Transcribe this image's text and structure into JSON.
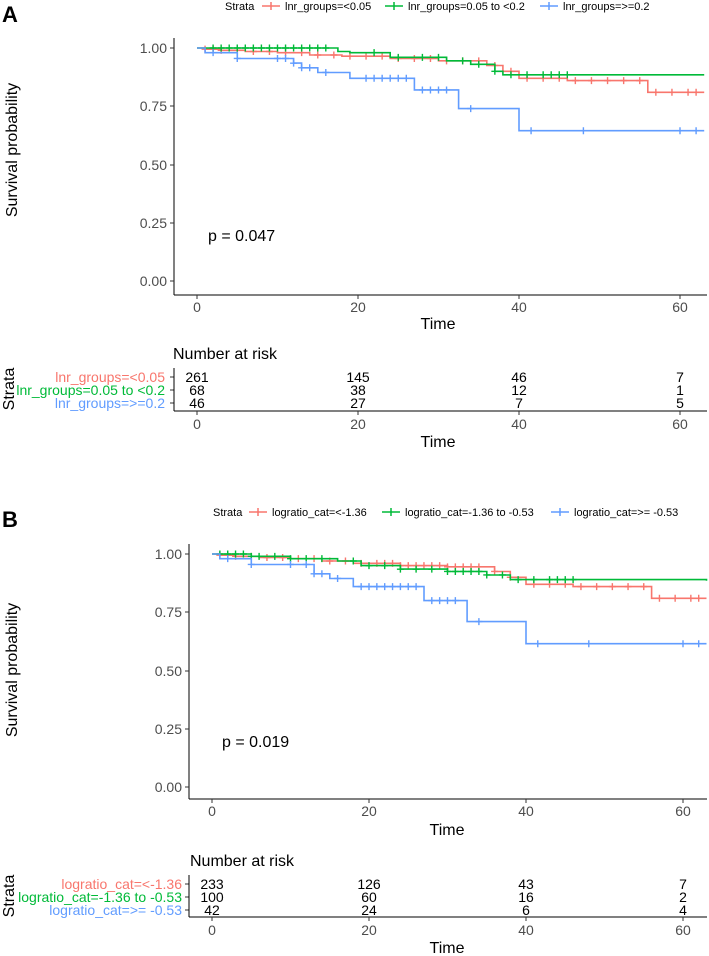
{
  "figure_labels": [
    "A",
    "B"
  ],
  "colors": {
    "red": "#f8766d",
    "green": "#00ba38",
    "blue": "#619cff",
    "axis": "#000000"
  },
  "chart_data": [
    {
      "type": "line",
      "subtype": "kaplan-meier",
      "label": "A",
      "legend_title": "Strata",
      "legend_position": "top",
      "ylabel": "Survival probability",
      "xlabel": "Time",
      "xlim": [
        0,
        63
      ],
      "ylim": [
        0,
        1
      ],
      "x_ticks": [
        "0",
        "20",
        "40",
        "60"
      ],
      "y_ticks": [
        "0.00",
        "0.25",
        "0.50",
        "0.75",
        "1.00"
      ],
      "pvalue": "p = 0.047",
      "series": [
        {
          "name": "lnr_groups=<0.05",
          "color": "#f8766d",
          "steps": [
            [
              0,
              1
            ],
            [
              1,
              0.995
            ],
            [
              3,
              0.99
            ],
            [
              6,
              0.985
            ],
            [
              10,
              0.98
            ],
            [
              14,
              0.97
            ],
            [
              18,
              0.965
            ],
            [
              24,
              0.955
            ],
            [
              30,
              0.945
            ],
            [
              36,
              0.925
            ],
            [
              38,
              0.9
            ],
            [
              40,
              0.87
            ],
            [
              46,
              0.86
            ],
            [
              56,
              0.81
            ],
            [
              63,
              0.81
            ]
          ],
          "censor": [
            1,
            2,
            3,
            5,
            7,
            9,
            11,
            13,
            15,
            17,
            19,
            21,
            23,
            25,
            27,
            29,
            31,
            33,
            35,
            37,
            39,
            41,
            43,
            45,
            47,
            49,
            51,
            53,
            55,
            57,
            59,
            61,
            62
          ]
        },
        {
          "name": "lnr_groups=0.05 to <0.2",
          "color": "#00ba38",
          "steps": [
            [
              0,
              1
            ],
            [
              17,
              1
            ],
            [
              17.5,
              0.985
            ],
            [
              19,
              0.98
            ],
            [
              24,
              0.96
            ],
            [
              31,
              0.945
            ],
            [
              34,
              0.93
            ],
            [
              37,
              0.9
            ],
            [
              38,
              0.885
            ],
            [
              63,
              0.885
            ]
          ],
          "censor": [
            2,
            3,
            4,
            5,
            6,
            7,
            8,
            9,
            10,
            11,
            12,
            13,
            14,
            15,
            16,
            22,
            25,
            28,
            30,
            33,
            35,
            37,
            39,
            41,
            43,
            44,
            45,
            46
          ]
        },
        {
          "name": "lnr_groups=>=0.2",
          "color": "#619cff",
          "steps": [
            [
              0,
              1
            ],
            [
              1,
              0.98
            ],
            [
              5,
              0.955
            ],
            [
              12,
              0.935
            ],
            [
              13,
              0.915
            ],
            [
              15,
              0.895
            ],
            [
              19,
              0.87
            ],
            [
              27,
              0.82
            ],
            [
              32.5,
              0.74
            ],
            [
              40,
              0.645
            ],
            [
              63,
              0.645
            ]
          ],
          "censor": [
            2,
            5,
            10,
            11,
            12,
            13,
            14,
            16,
            21,
            22,
            23,
            24,
            25,
            26,
            28,
            29,
            30,
            31,
            34,
            41.5,
            48,
            60,
            62
          ]
        }
      ],
      "risk_table": {
        "title": "Number at risk",
        "row_title": "Strata",
        "xlabel": "Time",
        "times": [
          0,
          20,
          40,
          60
        ],
        "x_ticks": [
          "0",
          "20",
          "40",
          "60"
        ],
        "rows": [
          {
            "name": "lnr_groups=<0.05",
            "values": [
              "261",
              "145",
              "46",
              "7"
            ]
          },
          {
            "name": "lnr_groups=0.05 to <0.2",
            "values": [
              "68",
              "38",
              "12",
              "1"
            ]
          },
          {
            "name": "lnr_groups=>=0.2",
            "values": [
              "46",
              "27",
              "7",
              "5"
            ]
          }
        ]
      }
    },
    {
      "type": "line",
      "subtype": "kaplan-meier",
      "label": "B",
      "legend_title": "Strata",
      "legend_position": "top",
      "ylabel": "Survival probability",
      "xlabel": "Time",
      "xlim": [
        0,
        63
      ],
      "ylim": [
        0,
        1
      ],
      "x_ticks": [
        "0",
        "20",
        "40",
        "60"
      ],
      "y_ticks": [
        "0.00",
        "0.25",
        "0.50",
        "0.75",
        "1.00"
      ],
      "pvalue": "p = 0.019",
      "series": [
        {
          "name": "logratio_cat=<-1.36",
          "color": "#f8766d",
          "steps": [
            [
              0,
              1
            ],
            [
              1,
              0.995
            ],
            [
              3,
              0.99
            ],
            [
              6,
              0.985
            ],
            [
              10,
              0.98
            ],
            [
              14,
              0.97
            ],
            [
              18,
              0.96
            ],
            [
              24,
              0.95
            ],
            [
              30,
              0.945
            ],
            [
              36,
              0.925
            ],
            [
              38,
              0.9
            ],
            [
              40,
              0.87
            ],
            [
              46,
              0.86
            ],
            [
              56,
              0.81
            ],
            [
              63,
              0.81
            ]
          ],
          "censor": [
            1,
            2,
            3,
            5,
            7,
            9,
            11,
            13,
            15,
            17,
            19,
            21,
            22,
            23,
            24,
            25,
            26,
            27,
            28,
            29,
            30,
            31,
            32,
            33,
            34,
            36,
            38,
            41,
            43,
            45,
            47,
            49,
            51,
            53,
            55,
            57,
            59,
            61,
            62
          ]
        },
        {
          "name": "logratio_cat=-1.36 to -0.53",
          "color": "#00ba38",
          "steps": [
            [
              0,
              1
            ],
            [
              5,
              0.99
            ],
            [
              10,
              0.98
            ],
            [
              16,
              0.97
            ],
            [
              19,
              0.95
            ],
            [
              24,
              0.935
            ],
            [
              30,
              0.925
            ],
            [
              35,
              0.91
            ],
            [
              38,
              0.89
            ],
            [
              63,
              0.885
            ]
          ],
          "censor": [
            1,
            2,
            3,
            4,
            5,
            6,
            8,
            10,
            12,
            14,
            18,
            20,
            22,
            24,
            26,
            28,
            30,
            31,
            32,
            33,
            34,
            35,
            37,
            39,
            41,
            43,
            44,
            45,
            46
          ]
        },
        {
          "name": "logratio_cat=>= -0.53",
          "color": "#619cff",
          "steps": [
            [
              0,
              1
            ],
            [
              1,
              0.98
            ],
            [
              5,
              0.955
            ],
            [
              13,
              0.915
            ],
            [
              15,
              0.895
            ],
            [
              18,
              0.86
            ],
            [
              27,
              0.8
            ],
            [
              32.5,
              0.71
            ],
            [
              40,
              0.615
            ],
            [
              63,
              0.615
            ]
          ],
          "censor": [
            2,
            5,
            10,
            12,
            13,
            14,
            16,
            19,
            20,
            21,
            22,
            23,
            24,
            25,
            26,
            28,
            29,
            30,
            31,
            34,
            41.5,
            48,
            60,
            62
          ]
        }
      ],
      "risk_table": {
        "title": "Number at risk",
        "row_title": "Strata",
        "xlabel": "Time",
        "times": [
          0,
          20,
          40,
          60
        ],
        "x_ticks": [
          "0",
          "20",
          "40",
          "60"
        ],
        "rows": [
          {
            "name": "logratio_cat=<-1.36",
            "values": [
              "233",
              "126",
              "43",
              "7"
            ]
          },
          {
            "name": "logratio_cat=-1.36 to -0.53",
            "values": [
              "100",
              "60",
              "16",
              "2"
            ]
          },
          {
            "name": "logratio_cat=>= -0.53",
            "values": [
              "42",
              "24",
              "6",
              "4"
            ]
          }
        ]
      }
    }
  ]
}
